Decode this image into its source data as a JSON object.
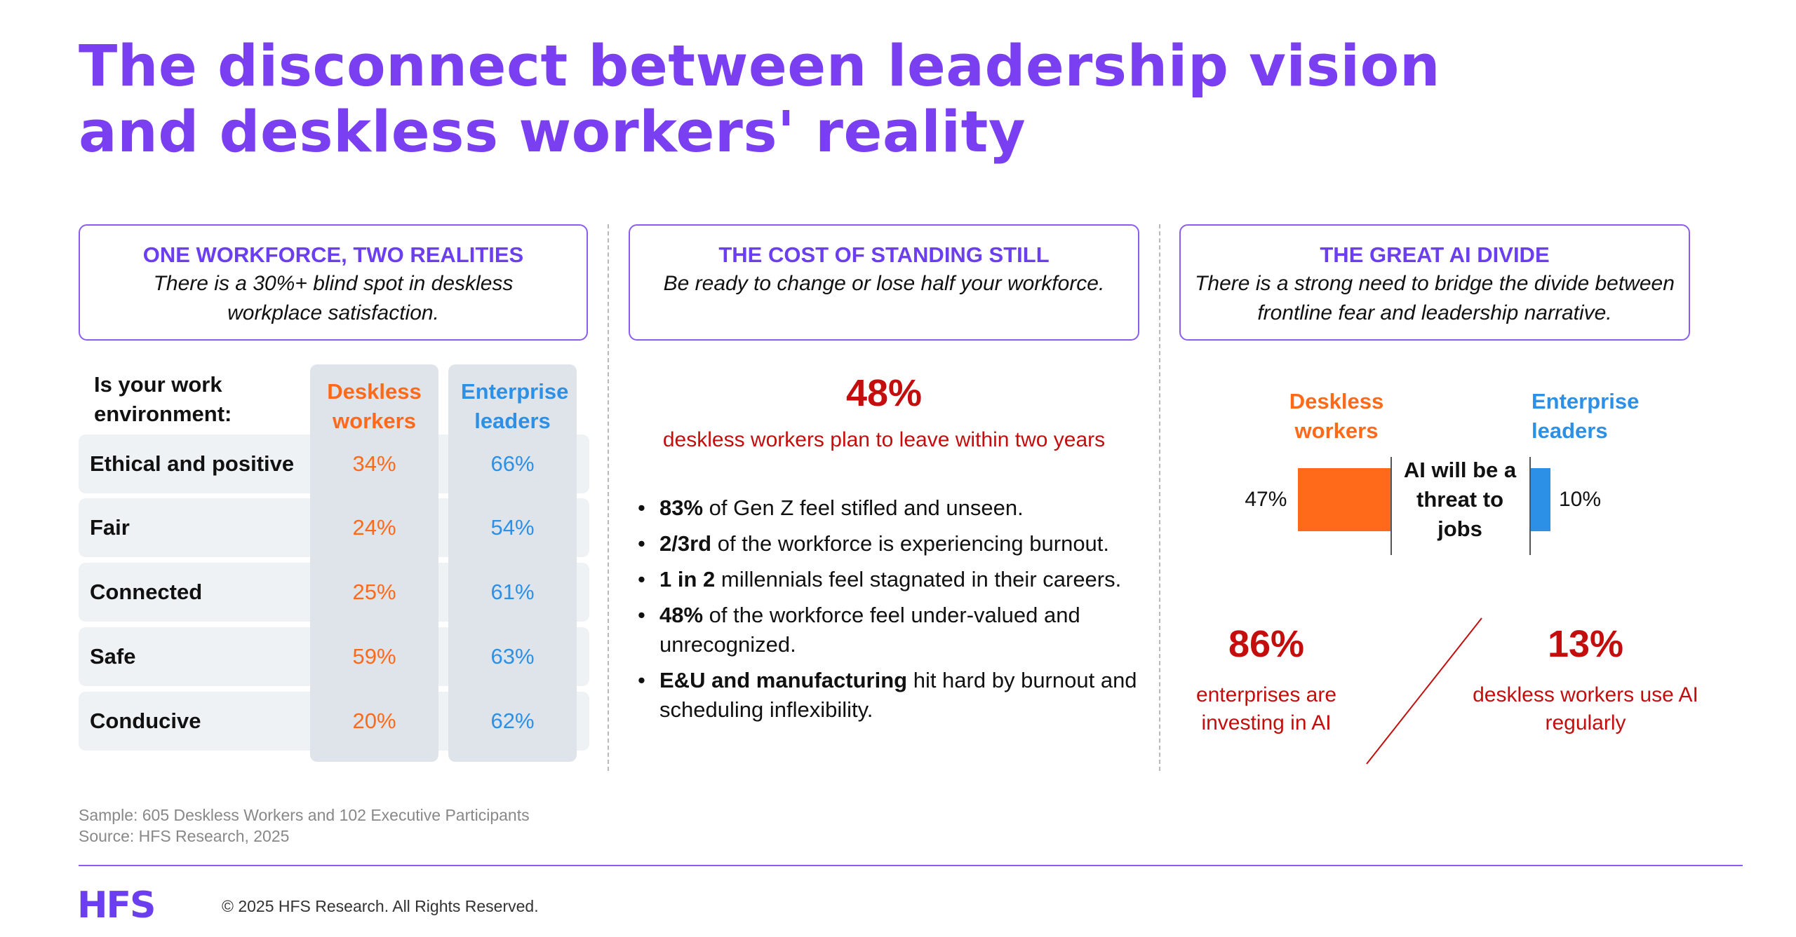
{
  "title": {
    "line1": "The disconnect between leadership vision",
    "line2": "and deskless workers' reality"
  },
  "panels": [
    {
      "heading": "ONE WORKFORCE, TWO REALITIES",
      "subtitle": "There is a 30%+ blind spot in deskless workplace satisfaction."
    },
    {
      "heading": "THE COST OF STANDING STILL",
      "subtitle": "Be ready to change or lose half your workforce."
    },
    {
      "heading": "THE GREAT AI DIVIDE",
      "subtitle": "There is a strong need to bridge the divide between frontline fear and leadership narrative."
    }
  ],
  "survey_table": {
    "question": "Is your work environment:",
    "col1": "Deskless workers",
    "col2": "Enterprise leaders",
    "colors": {
      "deskless": "#ff6a1a",
      "enterprise": "#2b90e6"
    },
    "rows": [
      {
        "label": "Ethical and positive",
        "deskless": "34%",
        "enterprise": "66%"
      },
      {
        "label": "Fair",
        "deskless": "24%",
        "enterprise": "54%"
      },
      {
        "label": "Connected",
        "deskless": "25%",
        "enterprise": "61%"
      },
      {
        "label": "Safe",
        "deskless": "59%",
        "enterprise": "63%"
      },
      {
        "label": "Conducive",
        "deskless": "20%",
        "enterprise": "62%"
      }
    ]
  },
  "standing_still": {
    "stat": "48%",
    "stat_caption": "deskless workers plan to leave within two years",
    "bullets": [
      {
        "bold": "83%",
        "text": " of Gen Z feel stifled and unseen."
      },
      {
        "bold": "2/3rd",
        "text": " of the workforce is experiencing burnout."
      },
      {
        "bold": "1 in 2",
        "text": " millennials feel stagnated in their careers."
      },
      {
        "bold": "48%",
        "text": " of the workforce feel under-valued and unrecognized."
      },
      {
        "bold": "E&U and manufacturing",
        "text": " hit hard by burnout and scheduling inflexibility."
      }
    ]
  },
  "chart_data": {
    "type": "bar",
    "title": "AI will be a threat to jobs",
    "categories": [
      "Deskless workers",
      "Enterprise leaders"
    ],
    "values": [
      47,
      10
    ],
    "labels": [
      "47%",
      "10%"
    ],
    "colors": [
      "#ff6a1a",
      "#2b90e6"
    ],
    "ylim": [
      0,
      100
    ]
  },
  "ai_divide": {
    "legend_deskless": "Deskless workers",
    "legend_enterprise": "Enterprise leaders",
    "stat_left": "86%",
    "caption_left": "enterprises are investing in AI",
    "stat_right": "13%",
    "caption_right": "deskless workers use AI regularly"
  },
  "footer": {
    "sample": "Sample: 605 Deskless Workers and 102 Executive Participants",
    "source": "Source: HFS Research, 2025",
    "logo": "HFS",
    "copyright": "© 2025 HFS Research. All Rights Reserved."
  }
}
